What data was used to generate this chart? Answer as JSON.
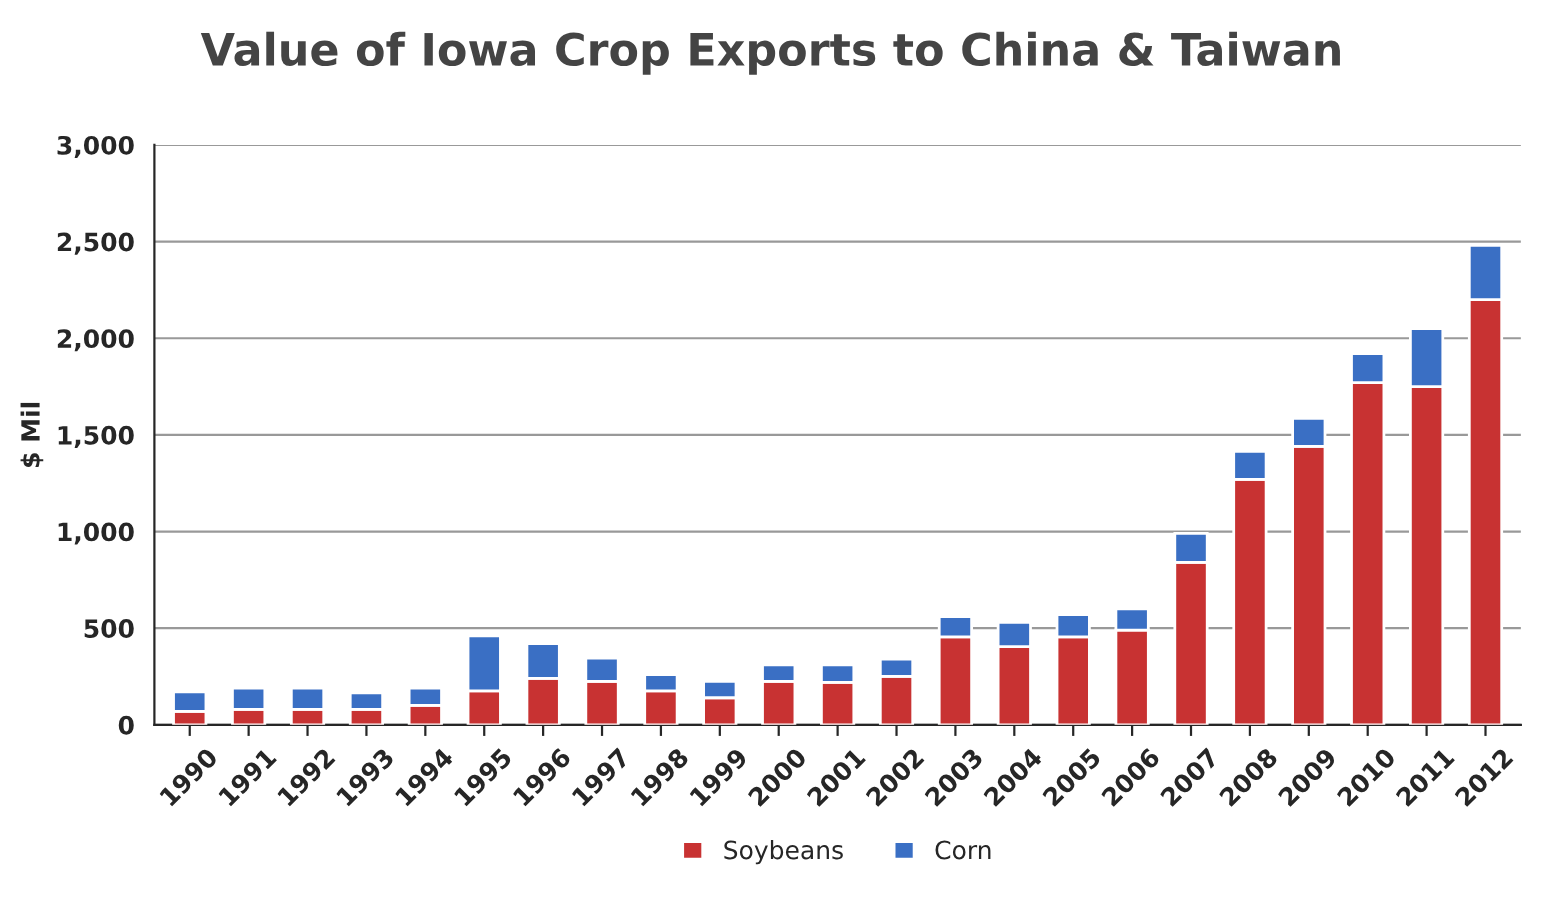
{
  "chart_data": {
    "type": "bar",
    "title": "Value of Iowa Crop Exports to China & Taiwan",
    "ylabel": "$ Mil",
    "categories": [
      "1990",
      "1991",
      "1992",
      "1993",
      "1994",
      "1995",
      "1996",
      "1997",
      "1998",
      "1999",
      "2000",
      "2001",
      "2002",
      "2003",
      "2004",
      "2005",
      "2006",
      "2007",
      "2008",
      "2009",
      "2010",
      "2011",
      "2012"
    ],
    "series": [
      {
        "name": "Soybeans",
        "color": "#c83232",
        "values": [
          70,
          80,
          80,
          80,
          100,
          175,
          240,
          225,
          175,
          140,
          225,
          220,
          250,
          455,
          405,
          455,
          490,
          840,
          1270,
          1440,
          1770,
          1750,
          2200
        ]
      },
      {
        "name": "Corn",
        "color": "#3a6fc4",
        "values": [
          100,
          110,
          110,
          85,
          90,
          285,
          180,
          120,
          85,
          85,
          85,
          90,
          90,
          105,
          125,
          115,
          110,
          150,
          145,
          145,
          150,
          300,
          280
        ]
      }
    ],
    "stacked": true,
    "ylim": [
      0,
      3000
    ],
    "yticks": [
      0,
      500,
      {
        "value": 1000,
        "label": "1,000"
      },
      {
        "value": 1500,
        "label": "1,500"
      },
      {
        "value": 2000,
        "label": "2,000"
      },
      {
        "value": 2500,
        "label": "2,500"
      },
      {
        "value": 3000,
        "label": "3,000"
      }
    ],
    "grid": "y",
    "legend": "bottom"
  }
}
